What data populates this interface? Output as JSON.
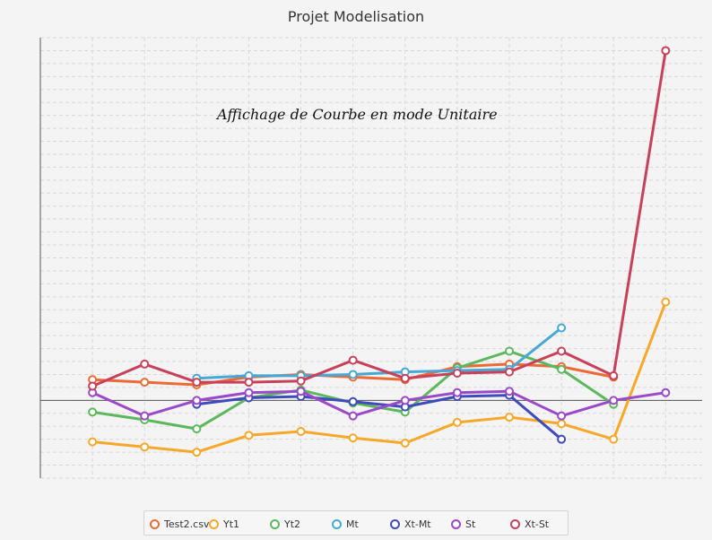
{
  "chart_data": {
    "type": "line",
    "title": "Projet Modelisation",
    "annotation": "Affichage de Courbe en mode Unitaire",
    "xlabel": "",
    "ylabel": "",
    "grid": true,
    "legend_position": "bottom",
    "x": [
      1,
      2,
      3,
      4,
      5,
      6,
      7,
      8,
      9,
      10,
      11,
      12
    ],
    "series": [
      {
        "name": "Test2.csv",
        "color": "#ec6a34",
        "values": [
          0.8,
          0.7,
          0.6,
          0.9,
          1.0,
          0.9,
          0.8,
          1.3,
          1.4,
          1.3,
          0.9,
          null
        ]
      },
      {
        "name": "Yt1",
        "color": "#f6a828",
        "values": [
          -1.6,
          -1.8,
          -2.0,
          -1.35,
          -1.2,
          -1.45,
          -1.65,
          -0.85,
          -0.65,
          -0.9,
          -1.5,
          3.8
        ]
      },
      {
        "name": "Yt2",
        "color": "#5cb85c",
        "values": [
          -0.45,
          -0.75,
          -1.1,
          0.1,
          0.4,
          -0.1,
          -0.45,
          1.25,
          1.9,
          1.2,
          -0.15,
          null
        ]
      },
      {
        "name": "Mt",
        "color": "#46a8d4",
        "values": [
          null,
          null,
          0.85,
          0.95,
          0.95,
          1.0,
          1.1,
          1.15,
          1.2,
          2.8,
          null,
          null
        ]
      },
      {
        "name": "Xt-Mt",
        "color": "#3f4bbd",
        "values": [
          null,
          null,
          -0.15,
          0.1,
          0.15,
          -0.05,
          -0.25,
          0.15,
          0.2,
          -1.5,
          null,
          null
        ]
      },
      {
        "name": "St",
        "color": "#9b49c8",
        "values": [
          0.3,
          -0.6,
          0.0,
          0.3,
          0.35,
          -0.6,
          0.0,
          0.3,
          0.35,
          -0.6,
          0.0,
          0.3
        ]
      },
      {
        "name": "Xt-St",
        "color": "#c8405a",
        "values": [
          0.55,
          1.4,
          0.7,
          0.7,
          0.75,
          1.55,
          0.85,
          1.05,
          1.1,
          1.9,
          0.95,
          13.5
        ]
      }
    ],
    "ylim": [
      -3.0,
      14.0
    ]
  }
}
